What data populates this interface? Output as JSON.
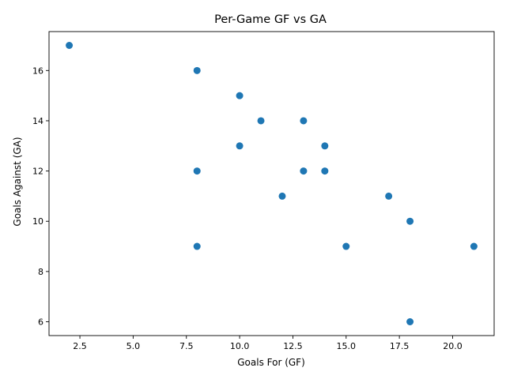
{
  "chart_data": {
    "type": "scatter",
    "title": "Per-Game GF vs GA",
    "xlabel": "Goals For (GF)",
    "ylabel": "Goals Against (GA)",
    "xlim": [
      1.05,
      21.95
    ],
    "ylim": [
      5.45,
      17.55
    ],
    "xticks": [
      2.5,
      5.0,
      7.5,
      10.0,
      12.5,
      15.0,
      17.5,
      20.0
    ],
    "xtick_labels": [
      "2.5",
      "5.0",
      "7.5",
      "10.0",
      "12.5",
      "15.0",
      "17.5",
      "20.0"
    ],
    "yticks": [
      6,
      8,
      10,
      12,
      14,
      16
    ],
    "ytick_labels": [
      "6",
      "8",
      "10",
      "12",
      "14",
      "16"
    ],
    "grid": false,
    "marker_color": "#1f77b4",
    "points": [
      {
        "x": 2,
        "y": 17
      },
      {
        "x": 8,
        "y": 16
      },
      {
        "x": 10,
        "y": 15
      },
      {
        "x": 11,
        "y": 14
      },
      {
        "x": 13,
        "y": 14
      },
      {
        "x": 10,
        "y": 13
      },
      {
        "x": 14,
        "y": 13
      },
      {
        "x": 8,
        "y": 12
      },
      {
        "x": 13,
        "y": 12
      },
      {
        "x": 14,
        "y": 12
      },
      {
        "x": 12,
        "y": 11
      },
      {
        "x": 17,
        "y": 11
      },
      {
        "x": 18,
        "y": 10
      },
      {
        "x": 8,
        "y": 9
      },
      {
        "x": 15,
        "y": 9
      },
      {
        "x": 21,
        "y": 9
      },
      {
        "x": 18,
        "y": 6
      }
    ]
  }
}
